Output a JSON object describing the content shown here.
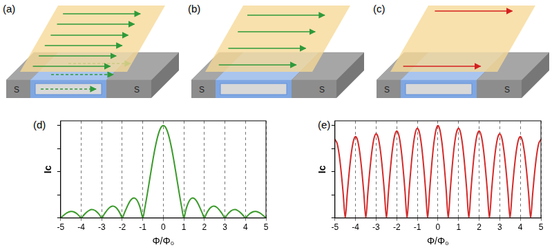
{
  "diagrams": [
    {
      "label": "(a)",
      "electrodes": [
        "S",
        "S"
      ]
    },
    {
      "label": "(b)",
      "electrodes": [
        "S",
        "S"
      ]
    },
    {
      "label": "(c)",
      "electrodes": [
        "S",
        "S"
      ]
    }
  ],
  "chart_data": [
    {
      "type": "line",
      "title": "(d)",
      "x_label": "Φ/Φ₀",
      "y_label": "Ic",
      "color": "#3a9a2a",
      "marker": "none",
      "line_style": "solid",
      "grid": "x",
      "tick_labels": "x",
      "xlim": [
        -5,
        5
      ],
      "xticks": [
        -5,
        -4,
        -3,
        -2,
        -1,
        0,
        1,
        2,
        3,
        4,
        5
      ],
      "ylim": [
        0,
        1.05
      ],
      "yticks": [
        0,
        0.25,
        0.5,
        0.75,
        1
      ],
      "x": [
        -5,
        -4.9,
        -4.8,
        -4.7,
        -4.6,
        -4.5,
        -4.4,
        -4.3,
        -4.2,
        -4.1,
        -4,
        -3.9,
        -3.8,
        -3.7,
        -3.6,
        -3.5,
        -3.4,
        -3.3,
        -3.2,
        -3.1,
        -3,
        -2.9,
        -2.8,
        -2.7,
        -2.6,
        -2.5,
        -2.4,
        -2.3,
        -2.2,
        -2.1,
        -2,
        -1.9,
        -1.8,
        -1.7,
        -1.6,
        -1.5,
        -1.4,
        -1.3,
        -1.2,
        -1.1,
        -1,
        -0.9,
        -0.8,
        -0.7,
        -0.6,
        -0.5,
        -0.4,
        -0.3,
        -0.2,
        -0.1,
        0,
        0.1,
        0.2,
        0.3,
        0.4,
        0.5,
        0.6,
        0.7,
        0.8,
        0.9,
        1,
        1.1,
        1.2,
        1.3,
        1.4,
        1.5,
        1.6,
        1.7,
        1.8,
        1.9,
        2,
        2.1,
        2.2,
        2.3,
        2.4,
        2.5,
        2.6,
        2.7,
        2.8,
        2.9,
        3,
        3.1,
        3.2,
        3.3,
        3.4,
        3.5,
        3.6,
        3.7,
        3.8,
        3.9,
        4,
        4.1,
        4.2,
        4.3,
        4.4,
        4.5,
        4.6,
        4.7,
        4.8,
        4.9,
        5
      ],
      "values": [
        0,
        0.02,
        0.039,
        0.055,
        0.066,
        0.071,
        0.069,
        0.06,
        0.045,
        0.024,
        0,
        0.025,
        0.049,
        0.07,
        0.084,
        0.091,
        0.089,
        0.078,
        0.058,
        0.032,
        0,
        0.034,
        0.067,
        0.095,
        0.116,
        0.127,
        0.126,
        0.112,
        0.085,
        0.047,
        0,
        0.052,
        0.104,
        0.152,
        0.189,
        0.212,
        0.216,
        0.198,
        0.156,
        0.089,
        0,
        0.109,
        0.234,
        0.368,
        0.505,
        0.637,
        0.757,
        0.858,
        0.935,
        0.984,
        1,
        0.984,
        0.935,
        0.858,
        0.757,
        0.637,
        0.505,
        0.368,
        0.234,
        0.109,
        0,
        0.089,
        0.156,
        0.198,
        0.216,
        0.212,
        0.189,
        0.152,
        0.104,
        0.052,
        0,
        0.047,
        0.085,
        0.112,
        0.126,
        0.127,
        0.116,
        0.095,
        0.067,
        0.034,
        0,
        0.032,
        0.058,
        0.078,
        0.089,
        0.091,
        0.084,
        0.07,
        0.049,
        0.025,
        0,
        0.024,
        0.045,
        0.06,
        0.069,
        0.071,
        0.066,
        0.055,
        0.039,
        0.02,
        0
      ]
    },
    {
      "type": "line",
      "title": "(e)",
      "x_label": "Φ/Φ₀",
      "y_label": "Ic",
      "color": "#d42a2a",
      "marker": "none",
      "line_style": "solid",
      "grid": "x",
      "tick_labels": "x",
      "xlim": [
        -5,
        5
      ],
      "xticks": [
        -5,
        -4,
        -3,
        -2,
        -1,
        0,
        1,
        2,
        3,
        4,
        5
      ],
      "ylim": [
        0,
        1.05
      ],
      "yticks": [
        0,
        0.25,
        0.5,
        0.75,
        1
      ],
      "x": [
        -5,
        -4.9,
        -4.8,
        -4.7,
        -4.6,
        -4.5,
        -4.4,
        -4.3,
        -4.2,
        -4.1,
        -4,
        -3.9,
        -3.8,
        -3.7,
        -3.6,
        -3.5,
        -3.4,
        -3.3,
        -3.2,
        -3.1,
        -3,
        -2.9,
        -2.8,
        -2.7,
        -2.6,
        -2.5,
        -2.4,
        -2.3,
        -2.2,
        -2.1,
        -2,
        -1.9,
        -1.8,
        -1.7,
        -1.6,
        -1.5,
        -1.4,
        -1.3,
        -1.2,
        -1.1,
        -1,
        -0.9,
        -0.8,
        -0.7,
        -0.6,
        -0.5,
        -0.4,
        -0.3,
        -0.2,
        -0.1,
        0,
        0.1,
        0.2,
        0.3,
        0.4,
        0.5,
        0.6,
        0.7,
        0.8,
        0.9,
        1,
        1.1,
        1.2,
        1.3,
        1.4,
        1.5,
        1.6,
        1.7,
        1.8,
        1.9,
        2,
        2.1,
        2.2,
        2.3,
        2.4,
        2.5,
        2.6,
        2.7,
        2.8,
        2.9,
        3,
        3.1,
        3.2,
        3.3,
        3.4,
        3.5,
        3.6,
        3.7,
        3.8,
        3.9,
        4,
        4.1,
        4.2,
        4.3,
        4.4,
        4.5,
        4.6,
        4.7,
        4.8,
        4.9,
        5
      ],
      "values": [
        0.85,
        0.811,
        0.693,
        0.505,
        0.266,
        0,
        0.268,
        0.512,
        0.707,
        0.834,
        0.88,
        0.84,
        0.717,
        0.523,
        0.276,
        0,
        0.278,
        0.53,
        0.731,
        0.863,
        0.91,
        0.868,
        0.741,
        0.54,
        0.285,
        0,
        0.287,
        0.547,
        0.756,
        0.891,
        0.94,
        0.897,
        0.765,
        0.558,
        0.294,
        0,
        0.296,
        0.565,
        0.78,
        0.92,
        0.97,
        0.925,
        0.79,
        0.576,
        0.303,
        0,
        0.305,
        0.583,
        0.804,
        0.948,
        1,
        0.948,
        0.804,
        0.583,
        0.305,
        0,
        0.303,
        0.576,
        0.79,
        0.925,
        0.97,
        0.92,
        0.78,
        0.565,
        0.296,
        0,
        0.294,
        0.558,
        0.765,
        0.897,
        0.94,
        0.891,
        0.756,
        0.547,
        0.287,
        0,
        0.285,
        0.54,
        0.741,
        0.868,
        0.91,
        0.863,
        0.731,
        0.53,
        0.278,
        0,
        0.276,
        0.523,
        0.717,
        0.84,
        0.88,
        0.834,
        0.707,
        0.512,
        0.268,
        0,
        0.266,
        0.505,
        0.693,
        0.811,
        0.85
      ]
    }
  ]
}
